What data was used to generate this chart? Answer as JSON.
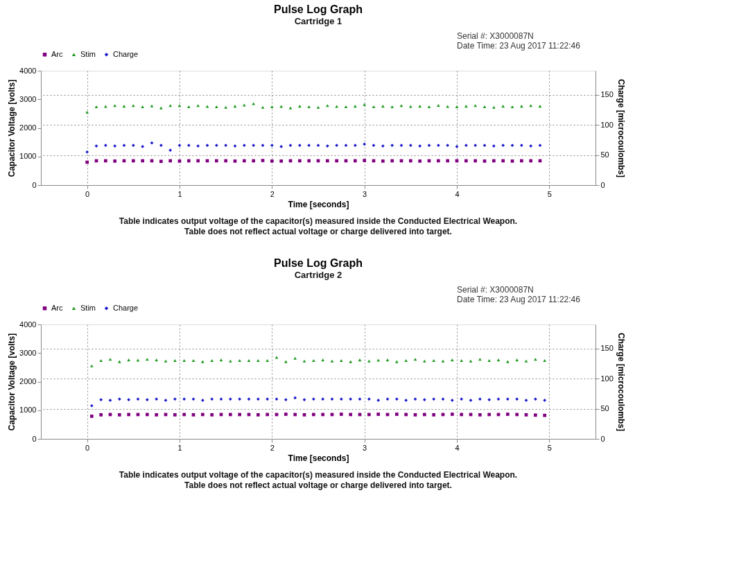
{
  "chart_data": [
    {
      "type": "scatter",
      "title": "Pulse Log Graph",
      "subtitle": "Cartridge 1",
      "xlabel": "Time [seconds]",
      "ylabel": "Capacitor Voltage [volts]",
      "y2label": "Charge [microcoulombs]",
      "x": [
        0,
        0.1,
        0.2,
        0.3,
        0.4,
        0.5,
        0.6,
        0.7,
        0.8,
        0.9,
        1,
        1.1,
        1.2,
        1.3,
        1.4,
        1.5,
        1.6,
        1.7,
        1.8,
        1.9,
        2,
        2.1,
        2.2,
        2.3,
        2.4,
        2.5,
        2.6,
        2.7,
        2.8,
        2.9,
        3,
        3.1,
        3.2,
        3.3,
        3.4,
        3.5,
        3.6,
        3.7,
        3.8,
        3.9,
        4,
        4.1,
        4.2,
        4.3,
        4.4,
        4.5,
        4.6,
        4.7,
        4.8,
        4.9
      ],
      "series": [
        {
          "name": "Arc",
          "color": "#800080",
          "marker": "square",
          "values": [
            800,
            850,
            850,
            840,
            850,
            850,
            850,
            850,
            830,
            850,
            840,
            850,
            850,
            850,
            850,
            850,
            840,
            850,
            850,
            860,
            840,
            840,
            850,
            850,
            850,
            850,
            850,
            850,
            850,
            850,
            860,
            850,
            840,
            850,
            850,
            850,
            840,
            850,
            850,
            850,
            850,
            850,
            850,
            840,
            850,
            850,
            840,
            850,
            850,
            850
          ]
        },
        {
          "name": "Stim",
          "color": "#1e9a1e",
          "marker": "triangle",
          "values": [
            2550,
            2740,
            2750,
            2780,
            2760,
            2780,
            2740,
            2770,
            2700,
            2780,
            2780,
            2740,
            2780,
            2750,
            2740,
            2720,
            2760,
            2800,
            2850,
            2720,
            2740,
            2750,
            2700,
            2760,
            2740,
            2720,
            2780,
            2750,
            2740,
            2760,
            2820,
            2740,
            2760,
            2740,
            2780,
            2750,
            2760,
            2740,
            2790,
            2750,
            2740,
            2760,
            2780,
            2740,
            2720,
            2760,
            2740,
            2760,
            2780,
            2760
          ]
        },
        {
          "name": "Charge",
          "color": "#1a1acc",
          "marker": "diamond",
          "axis": "y2",
          "values": [
            55,
            65,
            66,
            65,
            66,
            66,
            64,
            70,
            66,
            58,
            66,
            66,
            65,
            66,
            66,
            66,
            65,
            66,
            66,
            66,
            66,
            64,
            66,
            66,
            66,
            66,
            65,
            66,
            66,
            66,
            68,
            66,
            65,
            66,
            66,
            66,
            65,
            66,
            66,
            66,
            64,
            66,
            66,
            66,
            65,
            66,
            66,
            66,
            65,
            66
          ]
        }
      ],
      "xlim": [
        -0.5,
        5.5
      ],
      "xticks": [
        0,
        1,
        2,
        3,
        4,
        5
      ],
      "ylim": [
        0,
        4000
      ],
      "yticks": [
        0,
        1000,
        2000,
        3000,
        4000
      ],
      "y2lim": [
        0,
        190
      ],
      "y2ticks": [
        0,
        50,
        100,
        150
      ],
      "grid": true,
      "legend": "top",
      "annotations": [
        "Serial #:    X3000087N",
        "Date Time:  23 Aug 2017 11:22:46",
        "Table indicates output voltage of the capacitor(s) measured inside the Conducted Electrical Weapon.",
        "Table does not reflect actual voltage or charge delivered into target."
      ]
    },
    {
      "type": "scatter",
      "title": "Pulse Log Graph",
      "subtitle": "Cartridge 2",
      "xlabel": "Time [seconds]",
      "ylabel": "Capacitor Voltage [volts]",
      "y2label": "Charge [microcoulombs]",
      "x": [
        0.05,
        0.15,
        0.25,
        0.35,
        0.45,
        0.55,
        0.65,
        0.75,
        0.85,
        0.95,
        1.05,
        1.15,
        1.25,
        1.35,
        1.45,
        1.55,
        1.65,
        1.75,
        1.85,
        1.95,
        2.05,
        2.15,
        2.25,
        2.35,
        2.45,
        2.55,
        2.65,
        2.75,
        2.85,
        2.95,
        3.05,
        3.15,
        3.25,
        3.35,
        3.45,
        3.55,
        3.65,
        3.75,
        3.85,
        3.95,
        4.05,
        4.15,
        4.25,
        4.35,
        4.45,
        4.55,
        4.65,
        4.75,
        4.85,
        4.95
      ],
      "series": [
        {
          "name": "Arc",
          "color": "#800080",
          "marker": "square",
          "values": [
            790,
            840,
            850,
            840,
            850,
            850,
            850,
            840,
            850,
            840,
            850,
            840,
            850,
            840,
            850,
            850,
            850,
            850,
            840,
            850,
            850,
            860,
            850,
            840,
            850,
            850,
            850,
            860,
            850,
            850,
            850,
            860,
            850,
            860,
            850,
            840,
            850,
            840,
            850,
            860,
            850,
            850,
            840,
            850,
            850,
            860,
            850,
            840,
            830,
            820
          ]
        },
        {
          "name": "Stim",
          "color": "#1e9a1e",
          "marker": "triangle",
          "values": [
            2550,
            2740,
            2780,
            2700,
            2760,
            2750,
            2780,
            2760,
            2720,
            2740,
            2740,
            2740,
            2700,
            2740,
            2760,
            2720,
            2740,
            2740,
            2740,
            2740,
            2850,
            2700,
            2820,
            2720,
            2740,
            2760,
            2720,
            2740,
            2700,
            2760,
            2720,
            2750,
            2760,
            2700,
            2740,
            2780,
            2720,
            2740,
            2720,
            2760,
            2740,
            2720,
            2780,
            2740,
            2760,
            2700,
            2760,
            2720,
            2780,
            2740
          ]
        },
        {
          "name": "Charge",
          "color": "#1a1acc",
          "marker": "diamond",
          "axis": "y2",
          "values": [
            55,
            65,
            64,
            66,
            65,
            66,
            65,
            66,
            64,
            66,
            66,
            66,
            64,
            66,
            66,
            66,
            66,
            66,
            66,
            66,
            66,
            65,
            68,
            65,
            66,
            66,
            66,
            66,
            66,
            66,
            66,
            64,
            66,
            66,
            64,
            66,
            65,
            66,
            66,
            64,
            66,
            64,
            66,
            65,
            66,
            66,
            66,
            64,
            66,
            64
          ]
        }
      ],
      "xlim": [
        -0.5,
        5.5
      ],
      "xticks": [
        0,
        1,
        2,
        3,
        4,
        5
      ],
      "ylim": [
        0,
        4000
      ],
      "yticks": [
        0,
        1000,
        2000,
        3000,
        4000
      ],
      "y2lim": [
        0,
        190
      ],
      "y2ticks": [
        0,
        50,
        100,
        150
      ],
      "grid": true,
      "legend": "top",
      "annotations": [
        "Serial #:    X3000087N",
        "Date Time:  23 Aug 2017 11:22:46",
        "Table indicates output voltage of the capacitor(s) measured inside the Conducted Electrical Weapon.",
        "Table does not reflect actual voltage or charge delivered into target."
      ]
    }
  ]
}
